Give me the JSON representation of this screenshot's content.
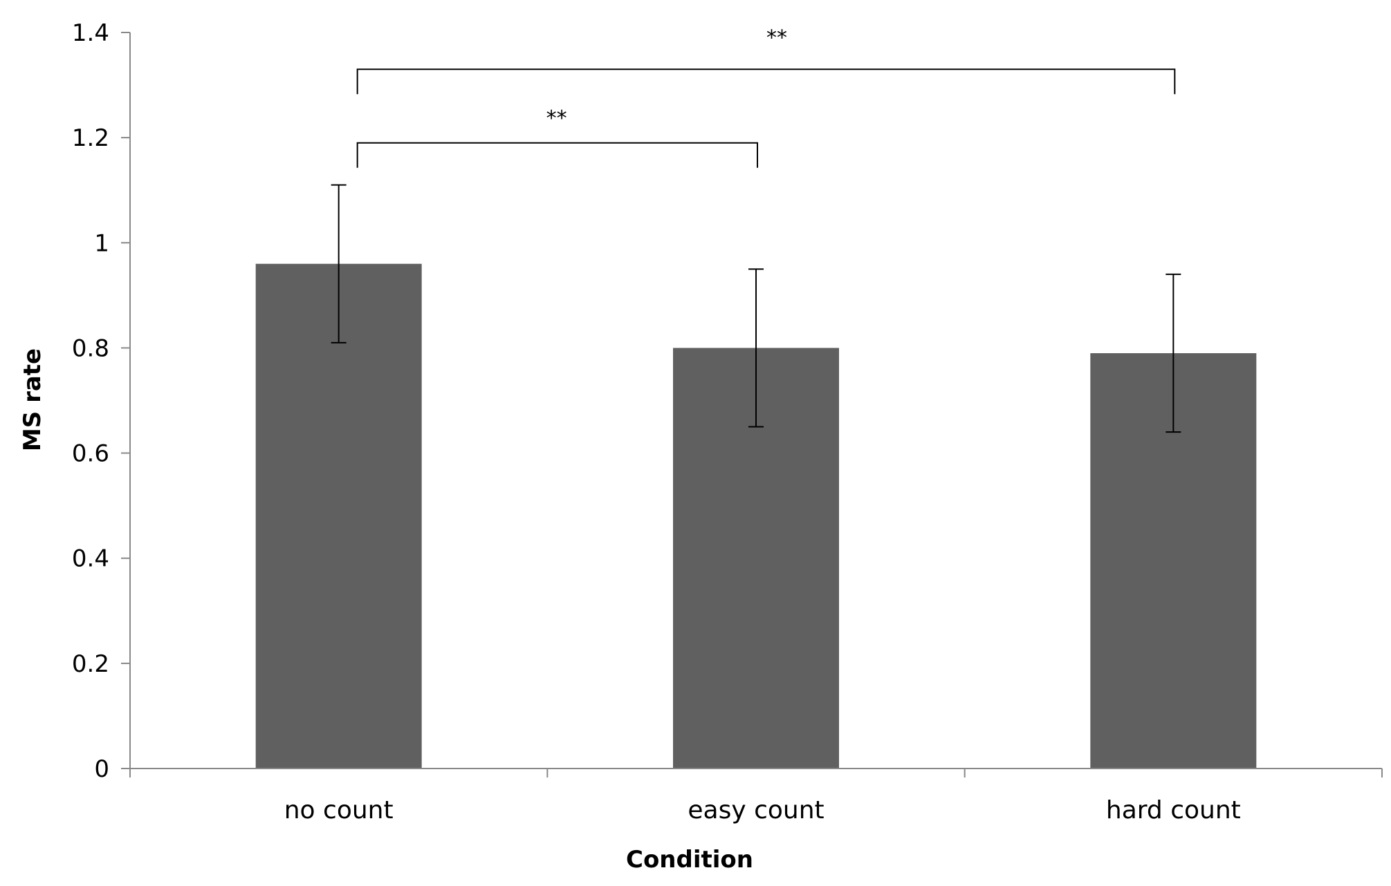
{
  "chart_data": {
    "type": "bar",
    "categories": [
      "no count",
      "easy count",
      "hard count"
    ],
    "values": [
      0.96,
      0.8,
      0.79
    ],
    "error": [
      0.15,
      0.15,
      0.15
    ],
    "xlabel": "Condition",
    "ylabel": "MS rate",
    "ylim": [
      0,
      1.4
    ],
    "yticks": [
      0,
      0.2,
      0.4,
      0.6,
      0.8,
      1,
      1.2,
      1.4
    ],
    "ytick_labels": [
      "0",
      "0.2",
      "0.4",
      "0.6",
      "0.8",
      "1",
      "1.2",
      "1.4"
    ],
    "grid": false,
    "legend": "none",
    "bar_color": "#606060",
    "significance": [
      {
        "from": 0,
        "to": 1,
        "label": "**",
        "level": 1.19
      },
      {
        "from": 0,
        "to": 2,
        "label": "**",
        "level": 1.33
      }
    ]
  }
}
